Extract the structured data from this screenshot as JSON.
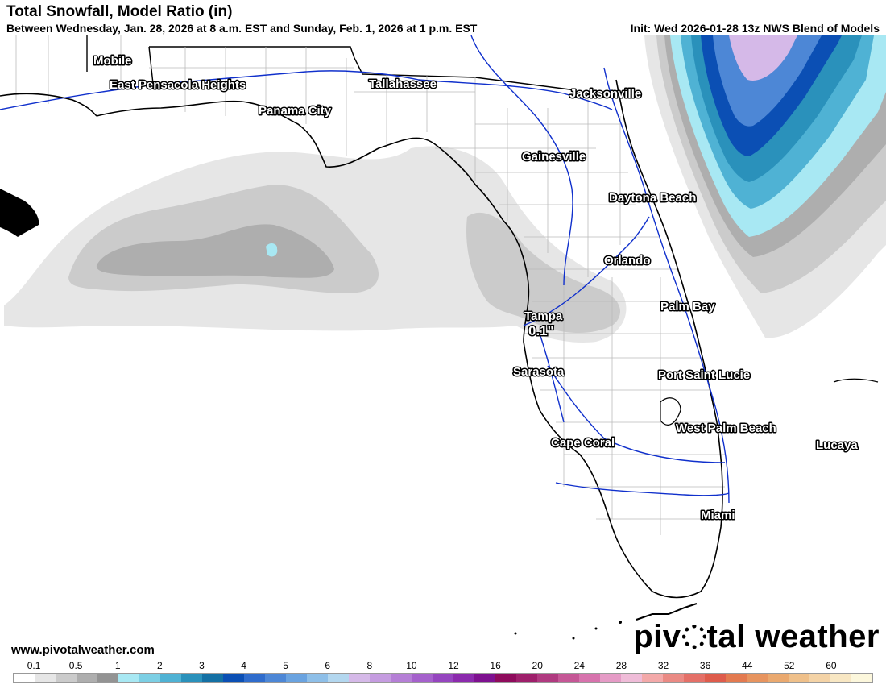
{
  "header": {
    "title": "Total Snowfall, Model Ratio (in)",
    "subtitle": "Between Wednesday, Jan. 28, 2026 at 8 a.m. EST and Sunday, Feb. 1, 2026 at 1 p.m. EST",
    "init": "Init: Wed 2026-01-28 13z NWS Blend of Models"
  },
  "map": {
    "cities": {
      "mobile": "Mobile",
      "east_pensacola_heights": "East Pensacola Heights",
      "tallahassee": "Tallahassee",
      "jacksonville": "Jacksonville",
      "panama_city": "Panama City",
      "gainesville": "Gainesville",
      "daytona_beach": "Daytona Beach",
      "orlando": "Orlando",
      "palm_bay": "Palm Bay",
      "tampa": "Tampa",
      "sarasota": "Sarasota",
      "port_saint_lucie": "Port Saint Lucie",
      "west_palm_beach": "West Palm Beach",
      "lucaya": "Lucaya",
      "cape_coral": "Cape Coral",
      "miami": "Miami"
    },
    "tampa_amount": "0.1\""
  },
  "footer": {
    "website": "www.pivotalweather.com",
    "brand_before": "piv",
    "brand_after": "tal weather"
  },
  "legend": {
    "labels": [
      "0.1",
      "0.5",
      "1",
      "2",
      "3",
      "4",
      "5",
      "6",
      "8",
      "10",
      "12",
      "16",
      "20",
      "24",
      "28",
      "32",
      "36",
      "44",
      "52",
      "60"
    ],
    "colors": [
      "#ffffff",
      "#e6e6e6",
      "#cbcbcb",
      "#aeaeae",
      "#939393",
      "#a8e8f3",
      "#7ccfe4",
      "#4fb2d4",
      "#2a91bb",
      "#1470a4",
      "#0b4fb4",
      "#2f6ccc",
      "#4d87d6",
      "#6aa3e0",
      "#8ebfe8",
      "#b3d7ef",
      "#d5b9e8",
      "#c59ce0",
      "#b57fd6",
      "#a561cc",
      "#9545bf",
      "#8b2aad",
      "#7e1190",
      "#8e0b5c",
      "#9e1f6b",
      "#b03a80",
      "#c55796",
      "#d773ad",
      "#e59bc6",
      "#efbcd8",
      "#f3a9a9",
      "#ea8a84",
      "#e47068",
      "#de5c4c",
      "#e37a50",
      "#e7945f",
      "#eaa96f",
      "#efc08a",
      "#f4d3a6",
      "#f8e7c3",
      "#fcf7dc"
    ]
  }
}
